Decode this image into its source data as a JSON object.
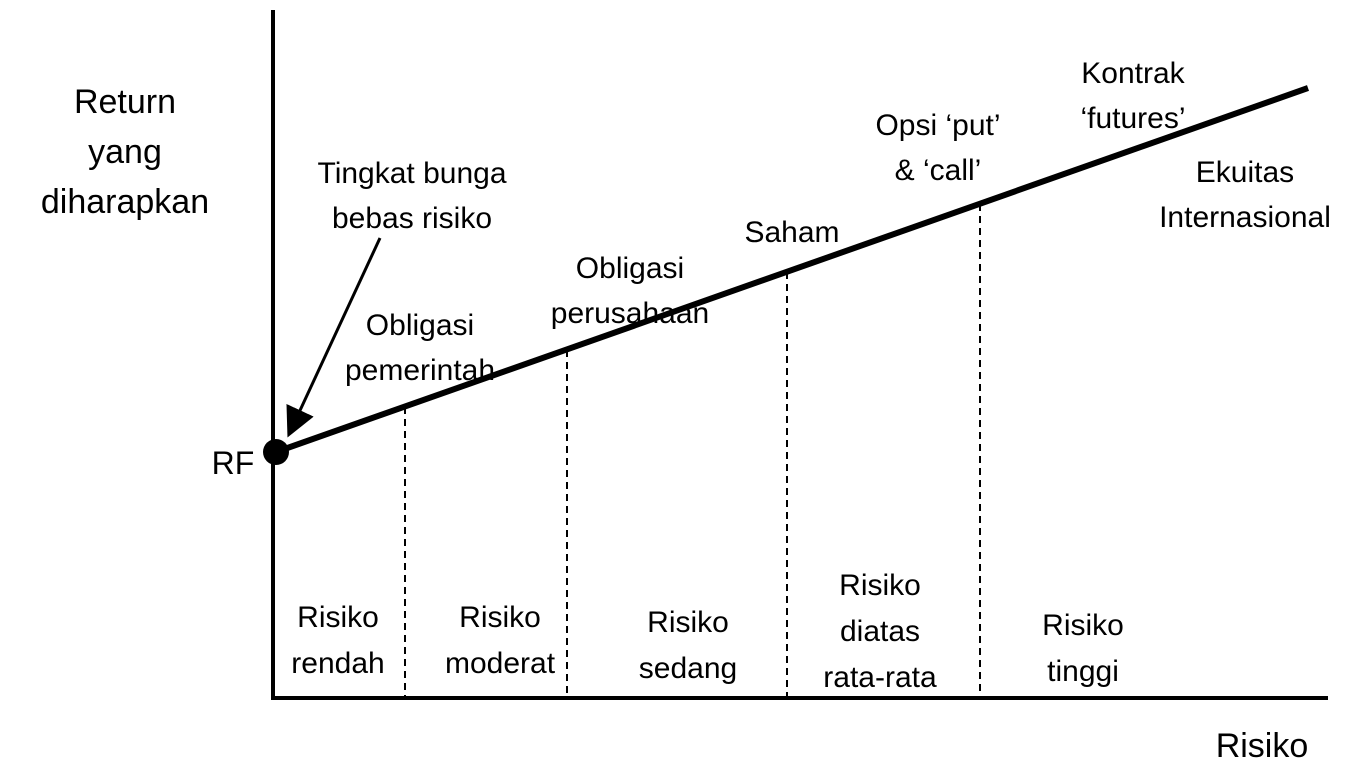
{
  "axes": {
    "y_label": [
      "Return",
      "yang",
      "diharapkan"
    ],
    "x_label": "Risiko",
    "origin_label": "RF"
  },
  "annotation": [
    "Tingkat bunga",
    "bebas risiko"
  ],
  "instruments": [
    {
      "lines": [
        "Obligasi",
        "pemerintah"
      ]
    },
    {
      "lines": [
        "Obligasi",
        "perusahaan"
      ]
    },
    {
      "lines": [
        "Saham"
      ]
    },
    {
      "lines": [
        "Opsi ‘put’",
        "& ‘call’"
      ]
    },
    {
      "lines": [
        "Kontrak",
        "‘futures’"
      ]
    },
    {
      "lines": [
        "Ekuitas",
        "Internasional"
      ]
    }
  ],
  "zones": [
    {
      "lines": [
        "Risiko",
        "rendah"
      ]
    },
    {
      "lines": [
        "Risiko",
        "moderat"
      ]
    },
    {
      "lines": [
        "Risiko",
        "sedang"
      ]
    },
    {
      "lines": [
        "Risiko",
        "diatas",
        "rata-rata"
      ]
    },
    {
      "lines": [
        "Risiko",
        "tinggi"
      ]
    }
  ]
}
